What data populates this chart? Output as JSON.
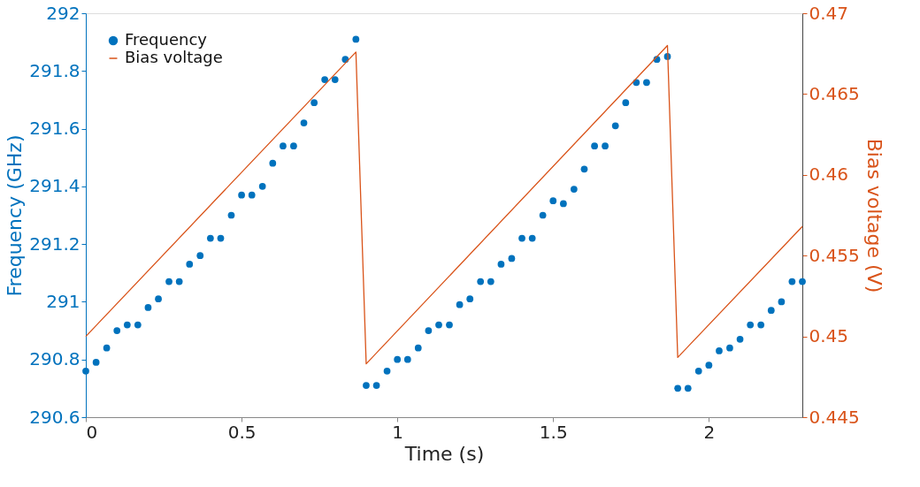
{
  "chart_data": {
    "type": "scatter",
    "xlabel": "Time (s)",
    "ylabel": "Frequency (GHz)",
    "y2label": "Bias voltage (V)",
    "xlim": [
      0,
      2.3
    ],
    "xticks": [
      0,
      0.5,
      1,
      1.5,
      2
    ],
    "ylim": [
      290.6,
      292
    ],
    "yticks": [
      290.6,
      290.8,
      291,
      291.2,
      291.4,
      291.6,
      291.8,
      292
    ],
    "y2lim": [
      0.445,
      0.47
    ],
    "y2ticks": [
      0.445,
      0.45,
      0.455,
      0.46,
      0.465,
      0.47
    ],
    "grid": false,
    "legend": "top left",
    "series": [
      {
        "name": "Frequency",
        "marker": "circle",
        "color": "#0072bd",
        "x": [
          0,
          0.033,
          0.067,
          0.1,
          0.133,
          0.167,
          0.2,
          0.233,
          0.267,
          0.3,
          0.333,
          0.367,
          0.4,
          0.433,
          0.467,
          0.5,
          0.533,
          0.567,
          0.6,
          0.633,
          0.667,
          0.7,
          0.733,
          0.767,
          0.8,
          0.833,
          0.867,
          0.9,
          0.933,
          0.967,
          1.0,
          1.033,
          1.067,
          1.1,
          1.133,
          1.167,
          1.2,
          1.233,
          1.267,
          1.3,
          1.333,
          1.367,
          1.4,
          1.433,
          1.467,
          1.5,
          1.533,
          1.567,
          1.6,
          1.633,
          1.667,
          1.7,
          1.733,
          1.767,
          1.8,
          1.833,
          1.867,
          1.9,
          1.933,
          1.967,
          2.0,
          2.033,
          2.067,
          2.1,
          2.133,
          2.167,
          2.2,
          2.233,
          2.267,
          2.3
        ],
        "values": [
          290.76,
          290.79,
          290.84,
          290.9,
          290.92,
          290.92,
          290.98,
          291.01,
          291.07,
          291.07,
          291.13,
          291.16,
          291.22,
          291.22,
          291.3,
          291.37,
          291.37,
          291.4,
          291.48,
          291.54,
          291.54,
          291.62,
          291.69,
          291.77,
          291.77,
          291.84,
          291.91,
          290.71,
          290.71,
          290.76,
          290.8,
          290.8,
          290.84,
          290.9,
          290.92,
          290.92,
          290.99,
          291.01,
          291.07,
          291.07,
          291.13,
          291.15,
          291.22,
          291.22,
          291.3,
          291.35,
          291.34,
          291.39,
          291.46,
          291.54,
          291.54,
          291.61,
          291.69,
          291.76,
          291.76,
          291.84,
          291.85,
          290.7,
          290.7,
          290.76,
          290.78,
          290.83,
          290.84,
          290.87,
          290.92,
          290.92,
          290.97,
          291.0,
          291.07,
          291.07
        ]
      },
      {
        "name": "Bias voltage",
        "type": "line",
        "axis": "y2",
        "line_style": "solid",
        "color": "#d95319",
        "x": [
          0,
          0.867,
          0.9,
          1.867,
          1.9,
          2.3
        ],
        "values": [
          0.45,
          0.4676,
          0.4483,
          0.468,
          0.4487,
          0.4568
        ]
      }
    ]
  }
}
